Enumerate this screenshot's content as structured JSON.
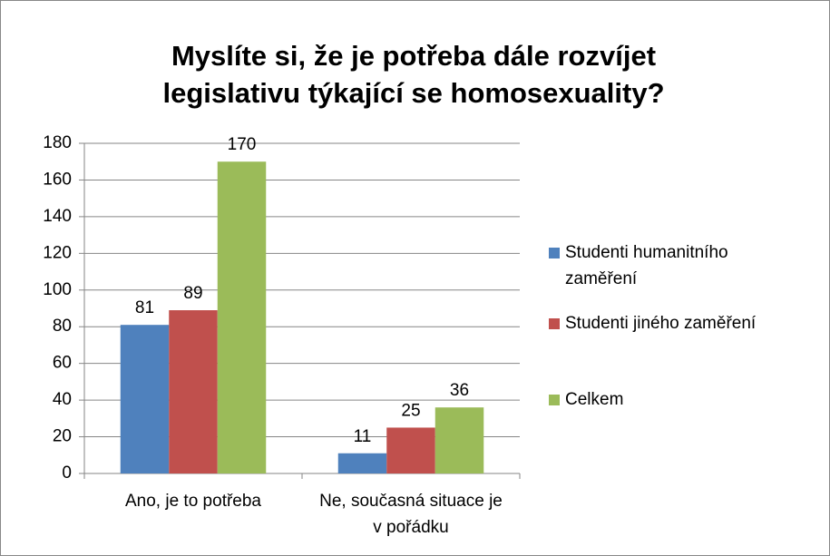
{
  "chart_data": {
    "type": "bar",
    "title": "Myslíte si, že je potřeba dále rozvíjet legislativu týkající se homosexuality?",
    "categories": [
      "Ano, je to potřeba",
      "Ne, současná situace je v pořádku"
    ],
    "series": [
      {
        "name": "Studenti humanitního zaměření",
        "color": "#4f81bd",
        "values": [
          81,
          11
        ]
      },
      {
        "name": "Studenti jiného zaměření",
        "color": "#c0504d",
        "values": [
          89,
          25
        ]
      },
      {
        "name": "Celkem",
        "color": "#9bbb59",
        "values": [
          170,
          36
        ]
      }
    ],
    "ylim": [
      0,
      180
    ],
    "yticks": [
      0,
      20,
      40,
      60,
      80,
      100,
      120,
      140,
      160,
      180
    ],
    "grid": true,
    "legend": "right"
  }
}
